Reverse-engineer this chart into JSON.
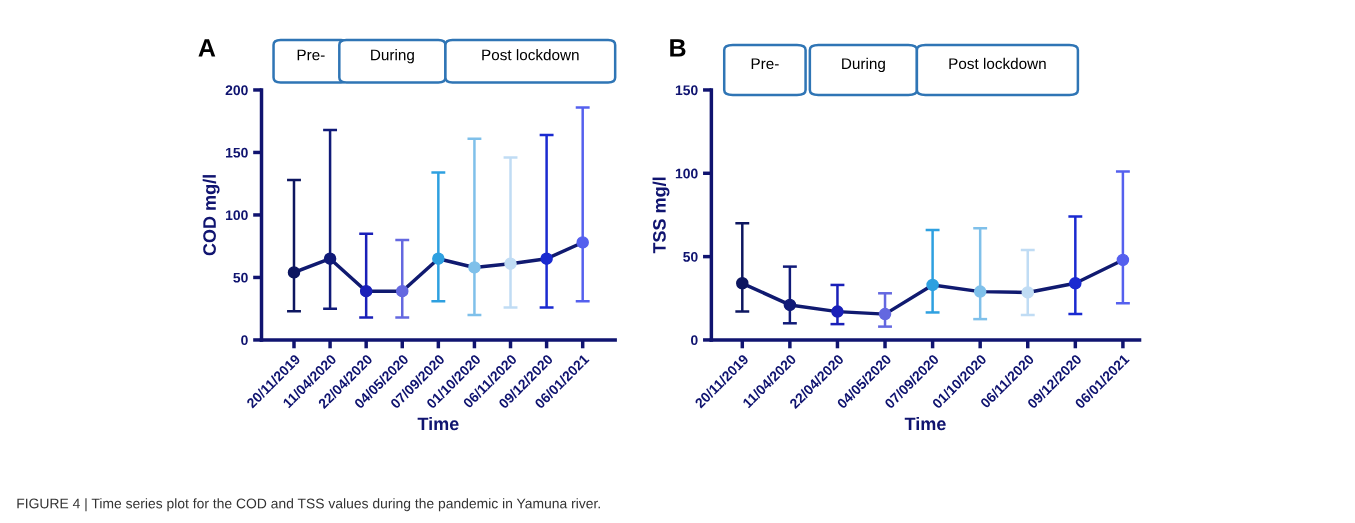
{
  "chart_data": [
    {
      "type": "line",
      "title": "A",
      "xlabel": "Time",
      "ylabel": "COD mg/l",
      "categories": [
        "20/11/2019",
        "11/04/2020",
        "22/04/2020",
        "04/05/2020",
        "07/09/2020",
        "01/10/2020",
        "06/11/2020",
        "09/12/2020",
        "06/01/2021"
      ],
      "series": [
        {
          "color": "#101a70",
          "colors": [
            "#0d1660",
            "#101a78",
            "#1a20b8",
            "#6468e0",
            "#2ea0e0",
            "#7fc0ea",
            "#c0dcf4",
            "#1a2ad0",
            "#5560ee"
          ],
          "values": [
            54,
            65,
            39,
            39,
            65,
            58,
            61,
            65,
            78
          ],
          "errors": [
            [
              23,
              128
            ],
            [
              25,
              168
            ],
            [
              18,
              85
            ],
            [
              18,
              80
            ],
            [
              31,
              134
            ],
            [
              20,
              161
            ],
            [
              26,
              146
            ],
            [
              26,
              164
            ],
            [
              31,
              186
            ]
          ]
        }
      ],
      "ylim": [
        0,
        200
      ],
      "yticks": [
        0,
        50,
        100,
        150,
        200
      ],
      "grid": false,
      "legend": false,
      "marker": "circle",
      "line_style": "solid",
      "annotations": [
        "Pre-",
        "During",
        "Post lockdown",
        "FIGURE 4 | Time series plot for the COD and TSS values during the pandemic in Yamuna river."
      ]
    },
    {
      "type": "line",
      "title": "B",
      "xlabel": "Time",
      "ylabel": "TSS mg/l",
      "categories": [
        "20/11/2019",
        "11/04/2020",
        "22/04/2020",
        "04/05/2020",
        "07/09/2020",
        "01/10/2020",
        "06/11/2020",
        "09/12/2020",
        "06/01/2021"
      ],
      "series": [
        {
          "color": "#101a70",
          "colors": [
            "#0d1660",
            "#101a78",
            "#1a20b8",
            "#6468e0",
            "#2ea0e0",
            "#7fc0ea",
            "#c0dcf4",
            "#1a2ad0",
            "#5560ee"
          ],
          "values": [
            34,
            21,
            17,
            15.5,
            33,
            29,
            28.5,
            34,
            48
          ],
          "errors": [
            [
              17,
              70
            ],
            [
              10,
              44
            ],
            [
              9.5,
              33
            ],
            [
              8,
              28
            ],
            [
              16.5,
              66
            ],
            [
              12.5,
              67
            ],
            [
              15,
              54
            ],
            [
              15.5,
              74
            ],
            [
              22,
              101
            ]
          ]
        }
      ],
      "ylim": [
        0,
        150
      ],
      "yticks": [
        0,
        50,
        100,
        150
      ],
      "grid": false,
      "legend": false,
      "marker": "circle",
      "line_style": "solid",
      "annotations": [
        "Pre-",
        "During",
        "Post lockdown"
      ]
    }
  ]
}
